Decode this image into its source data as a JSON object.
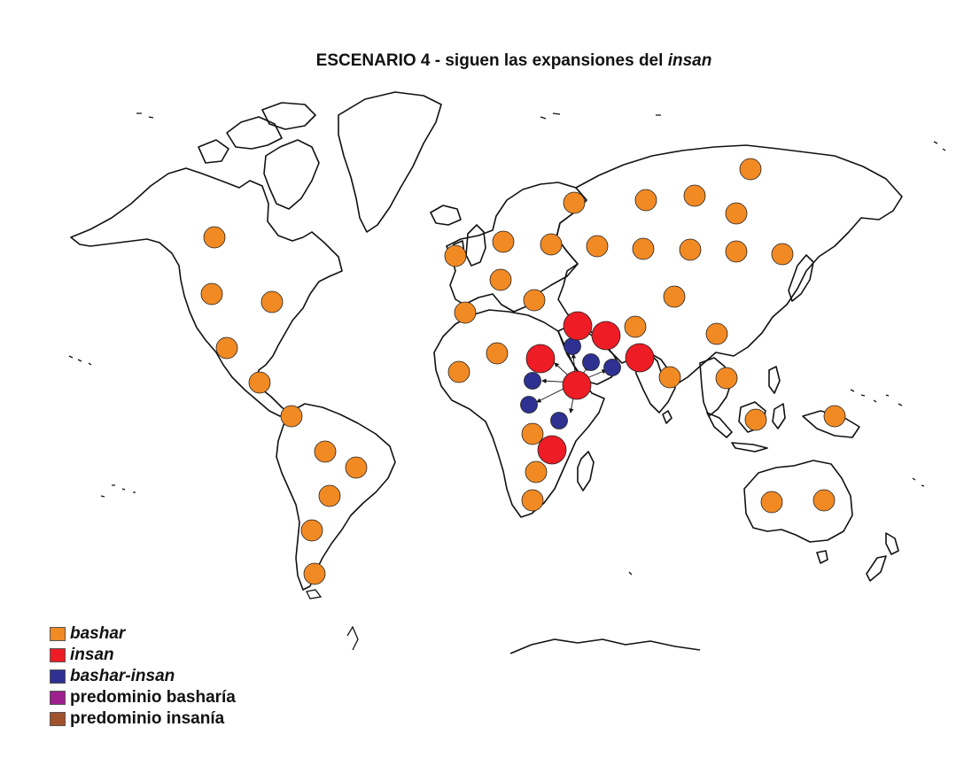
{
  "title": {
    "prefix": "ESCENARIO 4 - siguen las expansiones del ",
    "emphasis": "insan"
  },
  "colors": {
    "bashar": "#F28A24",
    "insan": "#EE1C25",
    "bashar_insan": "#2E3192",
    "predominio_basharia": "#9E1F8E",
    "predominio_insania": "#A0522D",
    "coastline": "#111111"
  },
  "legend": [
    {
      "key": "bashar",
      "label": "bashar",
      "italic": true,
      "color": "#F28A24"
    },
    {
      "key": "insan",
      "label": "insan",
      "italic": true,
      "color": "#EE1C25"
    },
    {
      "key": "bashar_insan",
      "label": "bashar-insan",
      "italic": true,
      "color": "#2E3192"
    },
    {
      "key": "predominio_basharia",
      "label": "predominio basharía",
      "italic": false,
      "color": "#9E1F8E"
    },
    {
      "key": "predominio_insania",
      "label": "predominio insanía",
      "italic": false,
      "color": "#A0522D"
    }
  ],
  "populations": {
    "bashar_sites": [
      {
        "region": "Alaska / NW Canada"
      },
      {
        "region": "Western North America"
      },
      {
        "region": "Eastern North America"
      },
      {
        "region": "Northern Mexico"
      },
      {
        "region": "Central America"
      },
      {
        "region": "Northern South America"
      },
      {
        "region": "Amazonia"
      },
      {
        "region": "Eastern Brazil"
      },
      {
        "region": "Central South America"
      },
      {
        "region": "Southern Cone"
      },
      {
        "region": "Patagonia"
      },
      {
        "region": "British Isles"
      },
      {
        "region": "Northern Europe"
      },
      {
        "region": "Western Europe"
      },
      {
        "region": "Iberia"
      },
      {
        "region": "Balkans"
      },
      {
        "region": "Scandinavia"
      },
      {
        "region": "Eastern Europe"
      },
      {
        "region": "West Africa"
      },
      {
        "region": "Sahara"
      },
      {
        "region": "Central Africa"
      },
      {
        "region": "Southern Africa"
      },
      {
        "region": "South Africa"
      },
      {
        "region": "Western Siberia"
      },
      {
        "region": "Central Siberia"
      },
      {
        "region": "Eastern Siberia"
      },
      {
        "region": "Far East Siberia"
      },
      {
        "region": "Russian Steppe"
      },
      {
        "region": "Kazakhstan"
      },
      {
        "region": "Central Asia"
      },
      {
        "region": "Mongolia"
      },
      {
        "region": "Manchuria"
      },
      {
        "region": "Kamchatka"
      },
      {
        "region": "Iran Plateau"
      },
      {
        "region": "Tarim"
      },
      {
        "region": "China"
      },
      {
        "region": "India"
      },
      {
        "region": "Southeast Asia"
      },
      {
        "region": "Sunda"
      },
      {
        "region": "New Guinea"
      },
      {
        "region": "Western Australia"
      },
      {
        "region": "Eastern Australia"
      }
    ],
    "insan_sites": [
      {
        "region": "Levant"
      },
      {
        "region": "Zagros"
      },
      {
        "region": "Nile Valley"
      },
      {
        "region": "South Asia corridor"
      },
      {
        "region": "Horn of Africa"
      },
      {
        "region": "East Africa"
      }
    ],
    "bashar_insan_sites": [
      {
        "region": "Sinai"
      },
      {
        "region": "Arabia North"
      },
      {
        "region": "Arabia East"
      },
      {
        "region": "Sudan North"
      },
      {
        "region": "Sudan South"
      },
      {
        "region": "Great Lakes"
      }
    ]
  }
}
